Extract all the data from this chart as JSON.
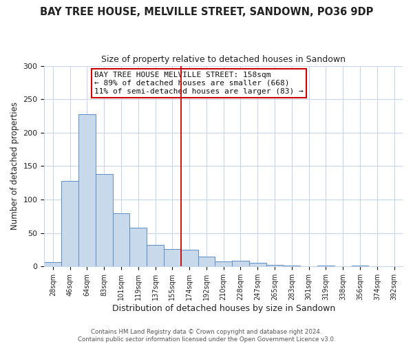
{
  "title": "BAY TREE HOUSE, MELVILLE STREET, SANDOWN, PO36 9DP",
  "subtitle": "Size of property relative to detached houses in Sandown",
  "xlabel": "Distribution of detached houses by size in Sandown",
  "ylabel": "Number of detached properties",
  "bar_labels": [
    "28sqm",
    "46sqm",
    "64sqm",
    "83sqm",
    "101sqm",
    "119sqm",
    "137sqm",
    "155sqm",
    "174sqm",
    "192sqm",
    "210sqm",
    "228sqm",
    "247sqm",
    "265sqm",
    "283sqm",
    "301sqm",
    "319sqm",
    "338sqm",
    "356sqm",
    "374sqm",
    "392sqm"
  ],
  "bar_values": [
    7,
    128,
    228,
    138,
    80,
    58,
    32,
    26,
    25,
    15,
    8,
    9,
    5,
    2,
    1,
    0,
    1,
    0,
    1,
    0,
    0
  ],
  "bar_color": "#c9d9ec",
  "bar_edge_color": "#5b8dc8",
  "vline_x": 7.5,
  "vline_color": "#cc0000",
  "annotation_title": "BAY TREE HOUSE MELVILLE STREET: 158sqm",
  "annotation_line1": "← 89% of detached houses are smaller (668)",
  "annotation_line2": "11% of semi-detached houses are larger (83) →",
  "annotation_box_color": "#ffffff",
  "annotation_box_edge": "#cc0000",
  "ylim": [
    0,
    300
  ],
  "yticks": [
    0,
    50,
    100,
    150,
    200,
    250,
    300
  ],
  "footer1": "Contains HM Land Registry data © Crown copyright and database right 2024.",
  "footer2": "Contains public sector information licensed under the Open Government Licence v3.0.",
  "background_color": "#ffffff",
  "grid_color": "#c8d4e8",
  "title_fontsize": 10.5,
  "subtitle_fontsize": 9,
  "annotation_fontsize": 8,
  "ylabel_fontsize": 8.5,
  "xlabel_fontsize": 9,
  "tick_fontsize": 7,
  "ytick_fontsize": 8
}
